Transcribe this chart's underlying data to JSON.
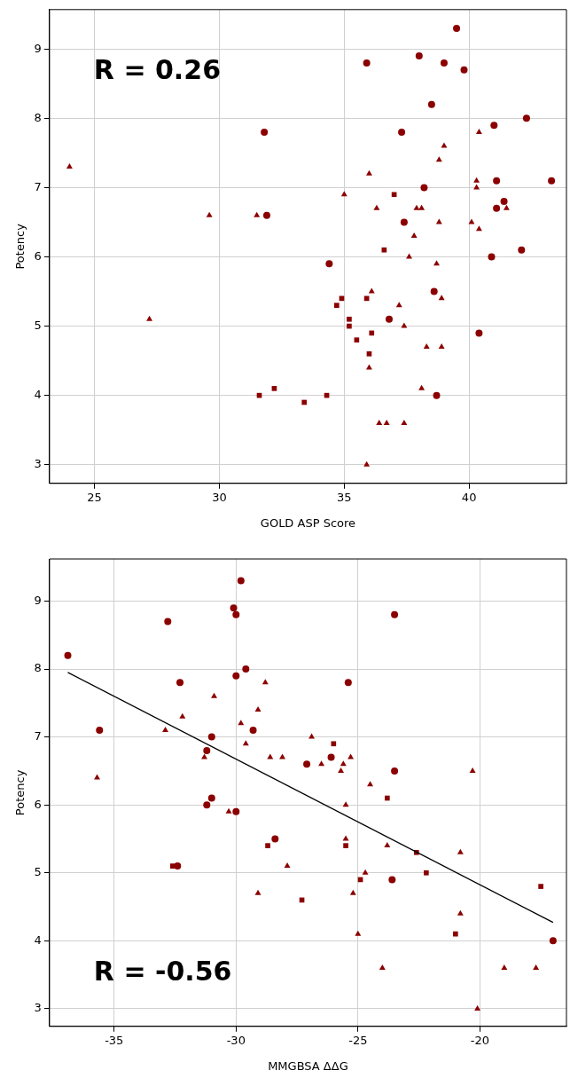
{
  "chart_data": [
    {
      "type": "scatter",
      "xlabel": "GOLD ASP Score",
      "ylabel": "Potency",
      "annotations": [
        "R = 0.26"
      ],
      "xlim": [
        23.2,
        43.9
      ],
      "xticks": [
        25,
        30,
        35,
        40
      ],
      "ylim": [
        2.73,
        9.57
      ],
      "yticks": [
        3,
        4,
        5,
        6,
        7,
        8,
        9
      ],
      "grid": true,
      "legend": false,
      "series": [
        {
          "color": "#8b0000",
          "marker": "circle",
          "x": [
            31.8,
            31.9,
            39.5,
            38.0,
            39.0,
            39.8,
            35.9,
            38.5,
            42.3,
            41.0,
            37.3,
            41.1,
            43.3,
            38.2,
            41.4,
            41.1,
            37.4,
            42.1,
            40.9,
            34.4,
            38.6,
            36.8,
            40.4,
            38.7
          ],
          "values": [
            7.8,
            6.6,
            9.3,
            8.9,
            8.8,
            8.7,
            8.8,
            8.2,
            8.0,
            7.9,
            7.8,
            7.1,
            7.1,
            7.0,
            6.8,
            6.7,
            6.5,
            6.1,
            6.0,
            5.9,
            5.5,
            5.1,
            4.9,
            4.0
          ]
        },
        {
          "color": "#8b0000",
          "marker": "square",
          "x": [
            31.6,
            32.2,
            33.4,
            37.0,
            36.6,
            34.9,
            35.9,
            34.7,
            35.2,
            35.2,
            36.1,
            35.5,
            36.0,
            34.3
          ],
          "values": [
            4.0,
            4.1,
            3.9,
            6.9,
            6.1,
            5.4,
            5.4,
            5.3,
            5.1,
            5.0,
            4.9,
            4.8,
            4.6,
            4.0
          ]
        },
        {
          "color": "#8b0000",
          "marker": "triangle",
          "x": [
            24.0,
            27.2,
            29.6,
            31.5,
            40.4,
            39.0,
            38.8,
            36.0,
            40.3,
            40.3,
            35.0,
            36.3,
            37.9,
            38.1,
            41.5,
            38.8,
            40.1,
            40.4,
            37.8,
            37.6,
            38.7,
            36.1,
            38.9,
            37.2,
            37.4,
            38.3,
            38.9,
            36.0,
            38.1,
            36.4,
            36.7,
            37.4,
            35.9
          ],
          "values": [
            7.3,
            5.1,
            6.6,
            6.6,
            7.8,
            7.6,
            7.4,
            7.2,
            7.1,
            7.0,
            6.9,
            6.7,
            6.7,
            6.7,
            6.7,
            6.5,
            6.5,
            6.4,
            6.3,
            6.0,
            5.9,
            5.5,
            5.4,
            5.3,
            5.0,
            4.7,
            4.7,
            4.4,
            4.1,
            3.6,
            3.6,
            3.6,
            3.0
          ]
        }
      ]
    },
    {
      "type": "scatter",
      "xlabel": "MMGBSA ΔΔG",
      "ylabel": "Potency",
      "annotations": [
        "R = -0.56"
      ],
      "xlim": [
        -37.65,
        -16.45
      ],
      "xticks": [
        -35,
        -30,
        -25,
        -20
      ],
      "ylim": [
        2.74,
        9.62
      ],
      "yticks": [
        3,
        4,
        5,
        6,
        7,
        8,
        9
      ],
      "grid": true,
      "legend": false,
      "series": [
        {
          "color": "#8b0000",
          "marker": "circle",
          "x": [
            -36.9,
            -29.8,
            -30.1,
            -30.0,
            -32.8,
            -29.6,
            -30.0,
            -32.3,
            -35.6,
            -29.3,
            -31.0,
            -31.2,
            -31.0,
            -31.2,
            -30.0,
            -28.4,
            -32.4,
            -27.1,
            -23.5,
            -25.4,
            -26.1,
            -23.5,
            -23.6,
            -17.0
          ],
          "values": [
            8.2,
            9.3,
            8.9,
            8.8,
            8.7,
            8.0,
            7.9,
            7.8,
            7.1,
            7.1,
            7.0,
            6.8,
            6.1,
            6.0,
            5.9,
            5.5,
            5.1,
            6.6,
            8.8,
            7.8,
            6.7,
            6.5,
            4.9,
            4.0
          ]
        },
        {
          "color": "#8b0000",
          "marker": "square",
          "x": [
            -32.6,
            -28.7,
            -27.3,
            -26.0,
            -23.8,
            -25.5,
            -22.6,
            -24.9,
            -22.2,
            -17.5,
            -21.0
          ],
          "values": [
            5.1,
            5.4,
            4.6,
            6.9,
            6.1,
            5.4,
            5.3,
            4.9,
            5.0,
            4.8,
            4.1
          ]
        },
        {
          "color": "#8b0000",
          "marker": "triangle",
          "x": [
            -35.7,
            -32.9,
            -32.2,
            -30.9,
            -28.8,
            -29.1,
            -29.8,
            -29.6,
            -31.3,
            -28.6,
            -28.1,
            -30.3,
            -27.9,
            -29.1,
            -26.9,
            -26.5,
            -25.6,
            -25.7,
            -25.3,
            -24.5,
            -20.3,
            -25.5,
            -25.5,
            -23.8,
            -20.8,
            -24.7,
            -25.2,
            -20.8,
            -25.0,
            -24.0,
            -19.0,
            -17.7,
            -20.1
          ],
          "values": [
            6.4,
            7.1,
            7.3,
            7.6,
            7.8,
            7.4,
            7.2,
            6.9,
            6.7,
            6.7,
            6.7,
            5.9,
            5.1,
            4.7,
            7.0,
            6.6,
            6.6,
            6.5,
            6.7,
            6.3,
            6.5,
            6.0,
            5.5,
            5.4,
            5.3,
            5.0,
            4.7,
            4.4,
            4.1,
            3.6,
            3.6,
            3.6,
            3.0
          ]
        },
        {
          "type": "line",
          "color": "#000000",
          "marker": "none",
          "x": [
            -36.9,
            -17.0
          ],
          "values": [
            7.95,
            4.27
          ]
        }
      ]
    }
  ]
}
